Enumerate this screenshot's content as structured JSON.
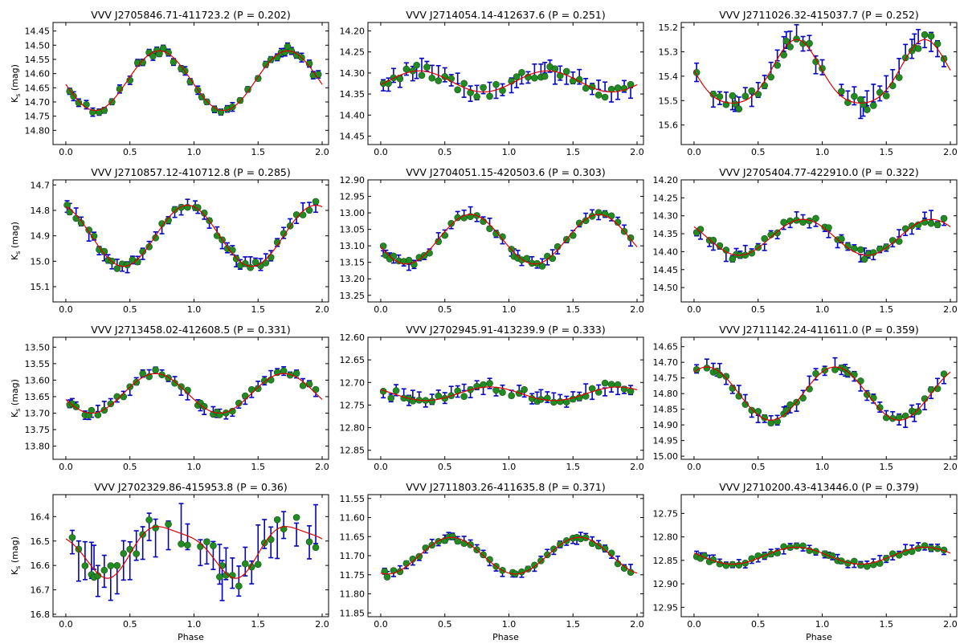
{
  "figure": {
    "xlabel": "Phase",
    "colors": {
      "points": "#228b22",
      "error_bars": "#0000cc",
      "model": "#dd0000",
      "frame": "#000000"
    }
  },
  "chart_data": [
    {
      "type": "scatter",
      "title": "VVV J2705846.71-411723.2  (P = 0.202)",
      "xlabel": "",
      "ylabel": "K_s (mag)",
      "xlim": [
        -0.1,
        2.05
      ],
      "ylim": [
        14.85,
        14.42
      ],
      "xticks": [
        "0.0",
        "0.5",
        "1.0",
        "1.5",
        "2.0"
      ],
      "yticks": [
        "14.45",
        "14.50",
        "14.55",
        "14.60",
        "14.65",
        "14.70",
        "14.75",
        "14.80"
      ],
      "model": {
        "mean": 14.625,
        "amp1": 0.105,
        "phi1": 0.73,
        "amp2": 0.0,
        "phi2": 0.0
      },
      "scatter": 0.016,
      "err": 0.012,
      "x": [
        0.03,
        0.06,
        0.1,
        0.16,
        0.21,
        0.26,
        0.3,
        0.36,
        0.42,
        0.5,
        0.56,
        0.6,
        0.65,
        0.68,
        0.71,
        0.73,
        0.76,
        0.8,
        0.84,
        0.9,
        0.93,
        0.97,
        1.03,
        1.06,
        1.1,
        1.16,
        1.21,
        1.26,
        1.3,
        1.36,
        1.42,
        1.5,
        1.56,
        1.6,
        1.65,
        1.68,
        1.71,
        1.73,
        1.76,
        1.8,
        1.84,
        1.9,
        1.93,
        1.97
      ]
    },
    {
      "type": "scatter",
      "title": "VVV J2714054.14-412637.6  (P = 0.251)",
      "xlabel": "",
      "ylabel": "",
      "xlim": [
        -0.1,
        2.05
      ],
      "ylim": [
        14.47,
        14.18
      ],
      "xticks": [
        "0.0",
        "0.5",
        "1.0",
        "1.5",
        "2.0"
      ],
      "yticks": [
        "14.20",
        "14.25",
        "14.30",
        "14.35",
        "14.40",
        "14.45"
      ],
      "model": {
        "mean": 14.32,
        "amp1": 0.025,
        "phi1": 0.3,
        "amp2": 0.0,
        "phi2": 0.0
      },
      "scatter": 0.015,
      "err": 0.014,
      "x": [
        0.02,
        0.06,
        0.1,
        0.15,
        0.2,
        0.25,
        0.28,
        0.32,
        0.36,
        0.4,
        0.45,
        0.5,
        0.55,
        0.6,
        0.65,
        0.7,
        0.75,
        0.8,
        0.85,
        0.9,
        0.95,
        1.02,
        1.06,
        1.1,
        1.15,
        1.2,
        1.25,
        1.28,
        1.32,
        1.36,
        1.4,
        1.45,
        1.5,
        1.55,
        1.6,
        1.65,
        1.7,
        1.75,
        1.8,
        1.85,
        1.9,
        1.95
      ]
    },
    {
      "type": "scatter",
      "title": "VVV J2711026.32-415037.7  (P = 0.252)",
      "xlabel": "",
      "ylabel": "",
      "xlim": [
        -0.1,
        2.05
      ],
      "ylim": [
        15.68,
        15.18
      ],
      "xticks": [
        "0.0",
        "0.5",
        "1.0",
        "1.5",
        "2.0"
      ],
      "yticks": [
        "15.2",
        "15.3",
        "15.4",
        "15.5",
        "15.6"
      ],
      "model": {
        "mean": 15.4,
        "amp1": 0.13,
        "phi1": 0.8,
        "amp2": 0.02,
        "phi2": 0.3
      },
      "scatter": 0.03,
      "err": 0.03,
      "x": [
        0.02,
        0.15,
        0.2,
        0.25,
        0.3,
        0.32,
        0.35,
        0.4,
        0.45,
        0.5,
        0.55,
        0.6,
        0.65,
        0.7,
        0.72,
        0.75,
        0.8,
        0.85,
        0.9,
        0.95,
        1.0,
        1.15,
        1.2,
        1.25,
        1.3,
        1.32,
        1.35,
        1.4,
        1.45,
        1.5,
        1.55,
        1.6,
        1.65,
        1.7,
        1.72,
        1.75,
        1.8,
        1.85,
        1.9,
        1.95
      ]
    },
    {
      "type": "scatter",
      "title": "VVV J2710857.12-410712.8  (P = 0.285)",
      "xlabel": "",
      "ylabel": "K_s (mag)",
      "xlim": [
        -0.1,
        2.05
      ],
      "ylim": [
        15.16,
        14.68
      ],
      "xticks": [
        "0.0",
        "0.5",
        "1.0",
        "1.5",
        "2.0"
      ],
      "yticks": [
        "14.7",
        "14.8",
        "14.9",
        "15.0",
        "15.1"
      ],
      "model": {
        "mean": 14.9,
        "amp1": 0.12,
        "phi1": 0.95,
        "amp2": 0.0,
        "phi2": 0.0
      },
      "scatter": 0.015,
      "err": 0.018,
      "x": [
        0.01,
        0.03,
        0.08,
        0.12,
        0.18,
        0.22,
        0.26,
        0.3,
        0.33,
        0.36,
        0.4,
        0.44,
        0.48,
        0.52,
        0.56,
        0.6,
        0.65,
        0.7,
        0.75,
        0.8,
        0.85,
        0.9,
        0.95,
        1.01,
        1.03,
        1.08,
        1.12,
        1.18,
        1.22,
        1.26,
        1.3,
        1.33,
        1.36,
        1.4,
        1.44,
        1.48,
        1.52,
        1.56,
        1.6,
        1.65,
        1.7,
        1.75,
        1.8,
        1.85,
        1.9,
        1.95
      ]
    },
    {
      "type": "scatter",
      "title": "VVV J2704051.15-420503.6  (P = 0.303)",
      "xlabel": "",
      "ylabel": "",
      "xlim": [
        -0.1,
        2.05
      ],
      "ylim": [
        13.27,
        12.9
      ],
      "xticks": [
        "0.0",
        "0.5",
        "1.0",
        "1.5",
        "2.0"
      ],
      "yticks": [
        "12.90",
        "12.95",
        "13.00",
        "13.05",
        "13.10",
        "13.15",
        "13.20",
        "13.25"
      ],
      "model": {
        "mean": 13.08,
        "amp1": 0.075,
        "phi1": 0.7,
        "amp2": 0.0,
        "phi2": 0.0
      },
      "scatter": 0.012,
      "err": 0.01,
      "x": [
        0.02,
        0.04,
        0.07,
        0.1,
        0.14,
        0.18,
        0.22,
        0.26,
        0.3,
        0.34,
        0.38,
        0.45,
        0.5,
        0.55,
        0.6,
        0.65,
        0.7,
        0.75,
        0.8,
        0.85,
        0.9,
        0.95,
        1.02,
        1.04,
        1.07,
        1.1,
        1.14,
        1.18,
        1.22,
        1.26,
        1.3,
        1.34,
        1.38,
        1.45,
        1.5,
        1.55,
        1.6,
        1.65,
        1.7,
        1.75,
        1.8,
        1.85,
        1.9,
        1.95
      ]
    },
    {
      "type": "scatter",
      "title": "VVV J2705404.77-422910.0  (P = 0.322)",
      "xlabel": "",
      "ylabel": "",
      "xlim": [
        -0.1,
        2.05
      ],
      "ylim": [
        14.54,
        14.2
      ],
      "xticks": [
        "0.0",
        "0.5",
        "1.0",
        "1.5",
        "2.0"
      ],
      "yticks": [
        "14.20",
        "14.25",
        "14.30",
        "14.35",
        "14.40",
        "14.45",
        "14.50"
      ],
      "model": {
        "mean": 14.36,
        "amp1": 0.05,
        "phi1": 0.85,
        "amp2": 0.0,
        "phi2": 0.0
      },
      "scatter": 0.014,
      "err": 0.01,
      "x": [
        0.02,
        0.05,
        0.12,
        0.15,
        0.2,
        0.25,
        0.3,
        0.33,
        0.36,
        0.4,
        0.45,
        0.5,
        0.55,
        0.6,
        0.65,
        0.7,
        0.75,
        0.8,
        0.85,
        0.9,
        0.95,
        1.02,
        1.05,
        1.12,
        1.15,
        1.2,
        1.25,
        1.3,
        1.33,
        1.36,
        1.4,
        1.45,
        1.5,
        1.55,
        1.6,
        1.65,
        1.7,
        1.75,
        1.8,
        1.85,
        1.9,
        1.95
      ]
    },
    {
      "type": "scatter",
      "title": "VVV J2713458.02-412608.5  (P = 0.331)",
      "xlabel": "",
      "ylabel": "K_s (mag)",
      "xlim": [
        -0.1,
        2.05
      ],
      "ylim": [
        13.84,
        13.47
      ],
      "xticks": [
        "0.0",
        "0.5",
        "1.0",
        "1.5",
        "2.0"
      ],
      "yticks": [
        "13.50",
        "13.55",
        "13.60",
        "13.65",
        "13.70",
        "13.75",
        "13.80"
      ],
      "model": {
        "mean": 13.64,
        "amp1": 0.06,
        "phi1": 0.7,
        "amp2": 0.0,
        "phi2": 0.0
      },
      "scatter": 0.012,
      "err": 0.01,
      "x": [
        0.03,
        0.05,
        0.08,
        0.15,
        0.18,
        0.2,
        0.25,
        0.3,
        0.35,
        0.4,
        0.45,
        0.5,
        0.55,
        0.6,
        0.65,
        0.7,
        0.75,
        0.8,
        0.85,
        0.9,
        0.95,
        1.03,
        1.05,
        1.08,
        1.15,
        1.18,
        1.2,
        1.25,
        1.3,
        1.35,
        1.4,
        1.45,
        1.5,
        1.55,
        1.6,
        1.65,
        1.7,
        1.75,
        1.8,
        1.85,
        1.9,
        1.95
      ]
    },
    {
      "type": "scatter",
      "title": "VVV J2702945.91-413239.9  (P = 0.333)",
      "xlabel": "",
      "ylabel": "",
      "xlim": [
        -0.1,
        2.05
      ],
      "ylim": [
        12.87,
        12.6
      ],
      "xticks": [
        "0.0",
        "0.5",
        "1.0",
        "1.5",
        "2.0"
      ],
      "yticks": [
        "12.60",
        "12.65",
        "12.70",
        "12.75",
        "12.80",
        "12.85"
      ],
      "model": {
        "mean": 12.725,
        "amp1": 0.015,
        "phi1": 0.85,
        "amp2": 0.0,
        "phi2": 0.0
      },
      "scatter": 0.012,
      "err": 0.01,
      "x": [
        0.02,
        0.08,
        0.12,
        0.18,
        0.22,
        0.25,
        0.3,
        0.35,
        0.4,
        0.45,
        0.5,
        0.55,
        0.6,
        0.65,
        0.7,
        0.75,
        0.8,
        0.85,
        0.9,
        0.95,
        1.02,
        1.08,
        1.12,
        1.18,
        1.22,
        1.25,
        1.3,
        1.35,
        1.4,
        1.45,
        1.5,
        1.55,
        1.6,
        1.65,
        1.7,
        1.75,
        1.8,
        1.85,
        1.9,
        1.95
      ]
    },
    {
      "type": "scatter",
      "title": "VVV J2711142.24-411611.0  (P = 0.359)",
      "xlabel": "",
      "ylabel": "",
      "xlim": [
        -0.1,
        2.05
      ],
      "ylim": [
        15.01,
        14.62
      ],
      "xticks": [
        "0.0",
        "0.5",
        "1.0",
        "1.5",
        "2.0"
      ],
      "yticks": [
        "14.65",
        "14.70",
        "14.75",
        "14.80",
        "14.85",
        "14.90",
        "14.95",
        "15.00"
      ],
      "model": {
        "mean": 14.8,
        "amp1": 0.085,
        "phi1": 0.1,
        "amp2": 0.0,
        "phi2": 0.0
      },
      "scatter": 0.015,
      "err": 0.015,
      "x": [
        0.02,
        0.1,
        0.15,
        0.18,
        0.2,
        0.25,
        0.3,
        0.35,
        0.4,
        0.45,
        0.5,
        0.55,
        0.6,
        0.65,
        0.7,
        0.72,
        0.75,
        0.8,
        0.85,
        0.9,
        0.95,
        1.02,
        1.1,
        1.15,
        1.18,
        1.2,
        1.25,
        1.3,
        1.35,
        1.4,
        1.45,
        1.5,
        1.55,
        1.6,
        1.65,
        1.7,
        1.72,
        1.75,
        1.8,
        1.85,
        1.9,
        1.95
      ]
    },
    {
      "type": "scatter",
      "title": "VVV J2702329.86-415953.8  (P = 0.36)",
      "xlabel": "Phase",
      "ylabel": "K_s (mag)",
      "xlim": [
        -0.1,
        2.05
      ],
      "ylim": [
        16.81,
        16.31
      ],
      "xticks": [
        "0.0",
        "0.5",
        "1.0",
        "1.5",
        "2.0"
      ],
      "yticks": [
        "16.4",
        "16.5",
        "16.6",
        "16.7",
        "16.8"
      ],
      "model": {
        "mean": 16.53,
        "amp1": 0.1,
        "phi1": 0.8,
        "amp2": 0.025,
        "phi2": 0.6
      },
      "scatter": 0.05,
      "err": 0.065,
      "x": [
        0.05,
        0.1,
        0.15,
        0.2,
        0.22,
        0.25,
        0.3,
        0.35,
        0.4,
        0.45,
        0.5,
        0.55,
        0.6,
        0.65,
        0.7,
        0.8,
        0.9,
        0.95,
        1.05,
        1.1,
        1.15,
        1.2,
        1.22,
        1.25,
        1.3,
        1.35,
        1.4,
        1.45,
        1.5,
        1.55,
        1.6,
        1.65,
        1.7,
        1.8,
        1.9,
        1.95
      ]
    },
    {
      "type": "scatter",
      "title": "VVV J2711803.26-411635.8  (P = 0.371)",
      "xlabel": "Phase",
      "ylabel": "",
      "xlim": [
        -0.1,
        2.05
      ],
      "ylim": [
        11.86,
        11.54
      ],
      "xticks": [
        "0.0",
        "0.5",
        "1.0",
        "1.5",
        "2.0"
      ],
      "yticks": [
        "11.55",
        "11.60",
        "11.65",
        "11.70",
        "11.75",
        "11.80",
        "11.85"
      ],
      "model": {
        "mean": 11.7,
        "amp1": 0.048,
        "phi1": 0.55,
        "amp2": 0.0,
        "phi2": 0.0
      },
      "scatter": 0.008,
      "err": 0.008,
      "x": [
        0.03,
        0.05,
        0.1,
        0.15,
        0.2,
        0.25,
        0.3,
        0.35,
        0.4,
        0.45,
        0.5,
        0.53,
        0.56,
        0.6,
        0.65,
        0.7,
        0.75,
        0.8,
        0.85,
        0.9,
        0.95,
        1.03,
        1.05,
        1.1,
        1.15,
        1.2,
        1.25,
        1.3,
        1.35,
        1.4,
        1.45,
        1.5,
        1.53,
        1.56,
        1.6,
        1.65,
        1.7,
        1.75,
        1.8,
        1.85,
        1.9,
        1.95
      ]
    },
    {
      "type": "scatter",
      "title": "VVV J2710200.43-413446.0  (P = 0.379)",
      "xlabel": "Phase",
      "ylabel": "",
      "xlim": [
        -0.1,
        2.05
      ],
      "ylim": [
        12.97,
        12.71
      ],
      "xticks": [
        "0.0",
        "0.5",
        "1.0",
        "1.5",
        "2.0"
      ],
      "yticks": [
        "12.75",
        "12.80",
        "12.85",
        "12.90",
        "12.95"
      ],
      "model": {
        "mean": 12.84,
        "amp1": 0.018,
        "phi1": 0.8,
        "amp2": 0.0,
        "phi2": 0.0
      },
      "scatter": 0.006,
      "err": 0.006,
      "x": [
        0.02,
        0.05,
        0.08,
        0.12,
        0.15,
        0.2,
        0.25,
        0.3,
        0.35,
        0.4,
        0.45,
        0.5,
        0.55,
        0.6,
        0.65,
        0.7,
        0.75,
        0.8,
        0.85,
        0.9,
        0.95,
        1.02,
        1.05,
        1.08,
        1.12,
        1.15,
        1.2,
        1.25,
        1.3,
        1.35,
        1.4,
        1.45,
        1.5,
        1.55,
        1.6,
        1.65,
        1.7,
        1.75,
        1.8,
        1.85,
        1.9,
        1.95
      ]
    }
  ]
}
